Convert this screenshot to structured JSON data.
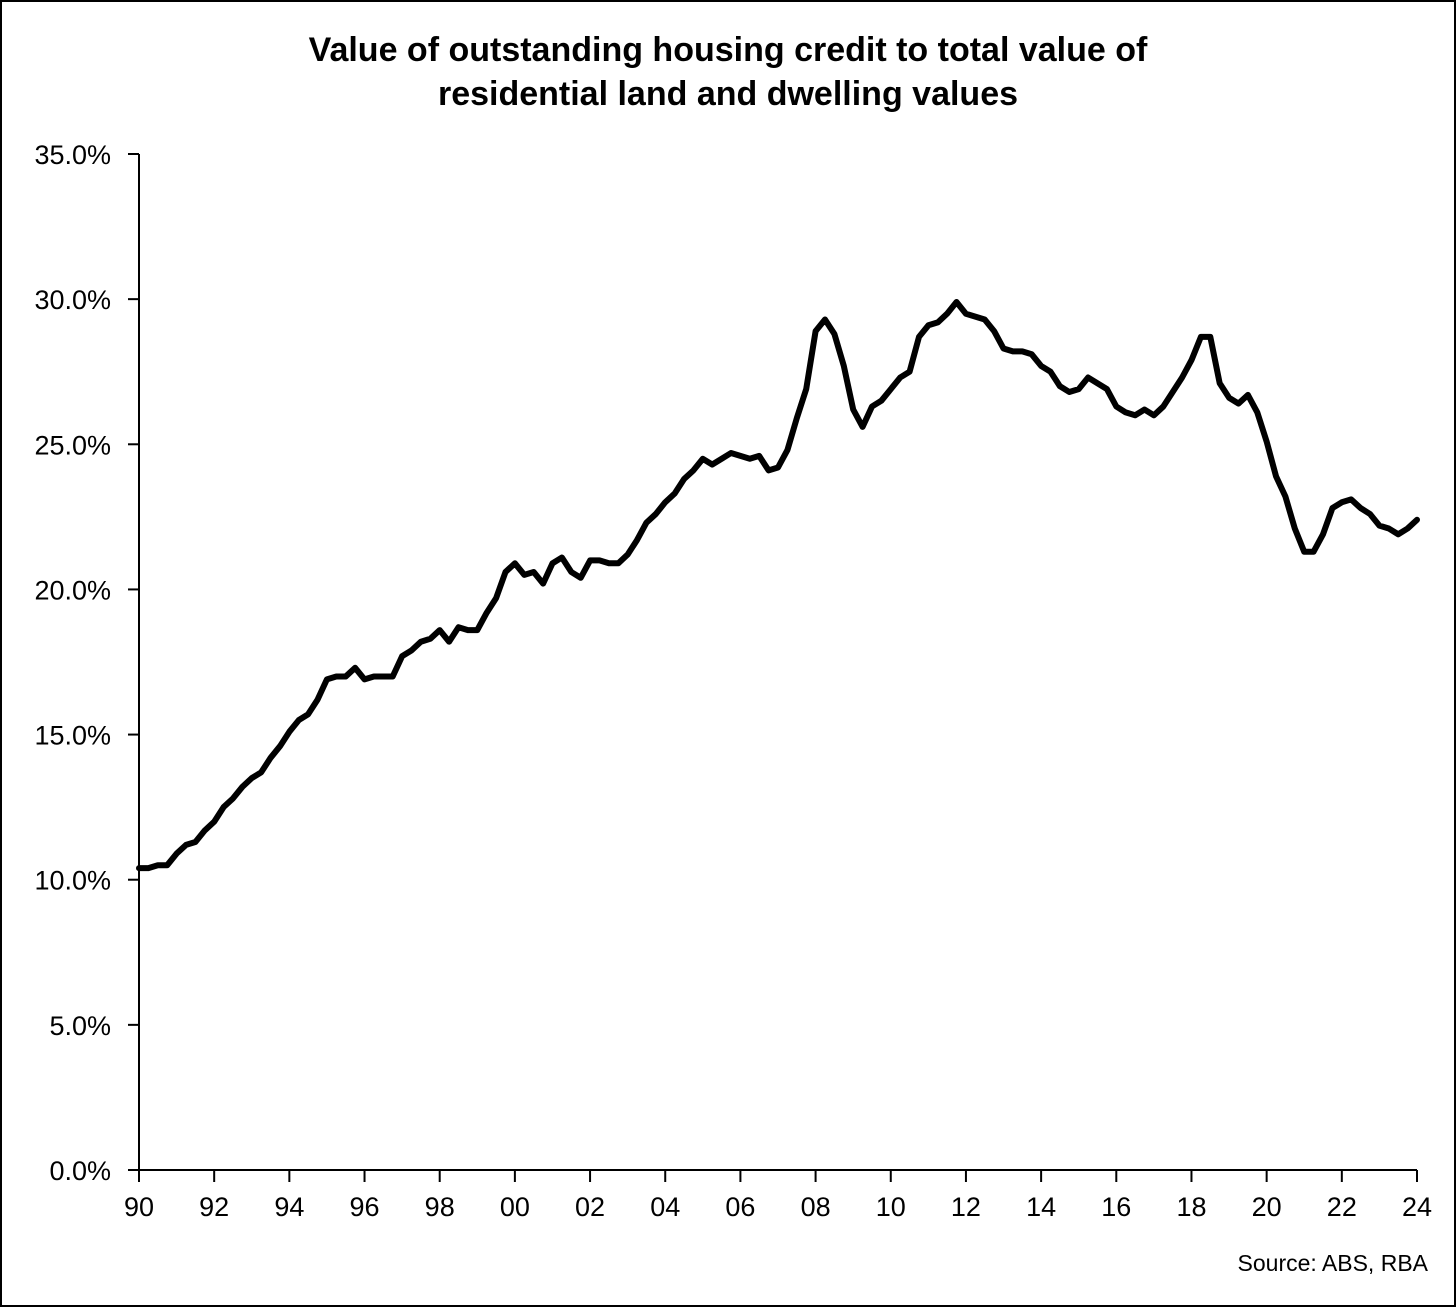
{
  "chart_data": {
    "type": "line",
    "title_line1": "Value of outstanding housing credit to total value of",
    "title_line2": "residential land and dwelling values",
    "xlabel": "",
    "ylabel": "",
    "source": "Source: ABS, RBA",
    "ylim": [
      0,
      35
    ],
    "xlim": [
      1990,
      2024
    ],
    "y_ticks": [
      0,
      5,
      10,
      15,
      20,
      25,
      30,
      35
    ],
    "y_tick_labels": [
      "0.0%",
      "5.0%",
      "10.0%",
      "15.0%",
      "20.0%",
      "25.0%",
      "30.0%",
      "35.0%"
    ],
    "x_ticks": [
      1990,
      1992,
      1994,
      1996,
      1998,
      2000,
      2002,
      2004,
      2006,
      2008,
      2010,
      2012,
      2014,
      2016,
      2018,
      2020,
      2022,
      2024
    ],
    "x_tick_labels": [
      "90",
      "92",
      "94",
      "96",
      "98",
      "00",
      "02",
      "04",
      "06",
      "08",
      "10",
      "12",
      "14",
      "16",
      "18",
      "20",
      "22",
      "24"
    ],
    "grid": false,
    "line_color": "#000000",
    "series": [
      {
        "points": [
          [
            1990.0,
            10.4
          ],
          [
            1990.25,
            10.4
          ],
          [
            1990.5,
            10.5
          ],
          [
            1990.75,
            10.5
          ],
          [
            1991.0,
            10.9
          ],
          [
            1991.25,
            11.2
          ],
          [
            1991.5,
            11.3
          ],
          [
            1991.75,
            11.7
          ],
          [
            1992.0,
            12.0
          ],
          [
            1992.25,
            12.5
          ],
          [
            1992.5,
            12.8
          ],
          [
            1992.75,
            13.2
          ],
          [
            1993.0,
            13.5
          ],
          [
            1993.25,
            13.7
          ],
          [
            1993.5,
            14.2
          ],
          [
            1993.75,
            14.6
          ],
          [
            1994.0,
            15.1
          ],
          [
            1994.25,
            15.5
          ],
          [
            1994.5,
            15.7
          ],
          [
            1994.75,
            16.2
          ],
          [
            1995.0,
            16.9
          ],
          [
            1995.25,
            17.0
          ],
          [
            1995.5,
            17.0
          ],
          [
            1995.75,
            17.3
          ],
          [
            1996.0,
            16.9
          ],
          [
            1996.25,
            17.0
          ],
          [
            1996.5,
            17.0
          ],
          [
            1996.75,
            17.0
          ],
          [
            1997.0,
            17.7
          ],
          [
            1997.25,
            17.9
          ],
          [
            1997.5,
            18.2
          ],
          [
            1997.75,
            18.3
          ],
          [
            1998.0,
            18.6
          ],
          [
            1998.25,
            18.2
          ],
          [
            1998.5,
            18.7
          ],
          [
            1998.75,
            18.6
          ],
          [
            1999.0,
            18.6
          ],
          [
            1999.25,
            19.2
          ],
          [
            1999.5,
            19.7
          ],
          [
            1999.75,
            20.6
          ],
          [
            2000.0,
            20.9
          ],
          [
            2000.25,
            20.5
          ],
          [
            2000.5,
            20.6
          ],
          [
            2000.75,
            20.2
          ],
          [
            2001.0,
            20.9
          ],
          [
            2001.25,
            21.1
          ],
          [
            2001.5,
            20.6
          ],
          [
            2001.75,
            20.4
          ],
          [
            2002.0,
            21.0
          ],
          [
            2002.25,
            21.0
          ],
          [
            2002.5,
            20.9
          ],
          [
            2002.75,
            20.9
          ],
          [
            2003.0,
            21.2
          ],
          [
            2003.25,
            21.7
          ],
          [
            2003.5,
            22.3
          ],
          [
            2003.75,
            22.6
          ],
          [
            2004.0,
            23.0
          ],
          [
            2004.25,
            23.3
          ],
          [
            2004.5,
            23.8
          ],
          [
            2004.75,
            24.1
          ],
          [
            2005.0,
            24.5
          ],
          [
            2005.25,
            24.3
          ],
          [
            2005.5,
            24.5
          ],
          [
            2005.75,
            24.7
          ],
          [
            2006.0,
            24.6
          ],
          [
            2006.25,
            24.5
          ],
          [
            2006.5,
            24.6
          ],
          [
            2006.75,
            24.1
          ],
          [
            2007.0,
            24.2
          ],
          [
            2007.25,
            24.8
          ],
          [
            2007.5,
            25.9
          ],
          [
            2007.75,
            26.9
          ],
          [
            2008.0,
            28.9
          ],
          [
            2008.25,
            29.3
          ],
          [
            2008.5,
            28.8
          ],
          [
            2008.75,
            27.7
          ],
          [
            2009.0,
            26.2
          ],
          [
            2009.25,
            25.6
          ],
          [
            2009.5,
            26.3
          ],
          [
            2009.75,
            26.5
          ],
          [
            2010.0,
            26.9
          ],
          [
            2010.25,
            27.3
          ],
          [
            2010.5,
            27.5
          ],
          [
            2010.75,
            28.7
          ],
          [
            2011.0,
            29.1
          ],
          [
            2011.25,
            29.2
          ],
          [
            2011.5,
            29.5
          ],
          [
            2011.75,
            29.9
          ],
          [
            2012.0,
            29.5
          ],
          [
            2012.25,
            29.4
          ],
          [
            2012.5,
            29.3
          ],
          [
            2012.75,
            28.9
          ],
          [
            2013.0,
            28.3
          ],
          [
            2013.25,
            28.2
          ],
          [
            2013.5,
            28.2
          ],
          [
            2013.75,
            28.1
          ],
          [
            2014.0,
            27.7
          ],
          [
            2014.25,
            27.5
          ],
          [
            2014.5,
            27.0
          ],
          [
            2014.75,
            26.8
          ],
          [
            2015.0,
            26.9
          ],
          [
            2015.25,
            27.3
          ],
          [
            2015.5,
            27.1
          ],
          [
            2015.75,
            26.9
          ],
          [
            2016.0,
            26.3
          ],
          [
            2016.25,
            26.1
          ],
          [
            2016.5,
            26.0
          ],
          [
            2016.75,
            26.2
          ],
          [
            2017.0,
            26.0
          ],
          [
            2017.25,
            26.3
          ],
          [
            2017.5,
            26.8
          ],
          [
            2017.75,
            27.3
          ],
          [
            2018.0,
            27.9
          ],
          [
            2018.25,
            28.7
          ],
          [
            2018.5,
            28.7
          ],
          [
            2018.75,
            27.1
          ],
          [
            2019.0,
            26.6
          ],
          [
            2019.25,
            26.4
          ],
          [
            2019.5,
            26.7
          ],
          [
            2019.75,
            26.1
          ],
          [
            2020.0,
            25.1
          ],
          [
            2020.25,
            23.9
          ],
          [
            2020.5,
            23.2
          ],
          [
            2020.75,
            22.1
          ],
          [
            2021.0,
            21.3
          ],
          [
            2021.25,
            21.3
          ],
          [
            2021.5,
            21.9
          ],
          [
            2021.75,
            22.8
          ],
          [
            2022.0,
            23.0
          ],
          [
            2022.25,
            23.1
          ],
          [
            2022.5,
            22.8
          ],
          [
            2022.75,
            22.6
          ],
          [
            2023.0,
            22.2
          ],
          [
            2023.25,
            22.1
          ],
          [
            2023.5,
            21.9
          ],
          [
            2023.75,
            22.1
          ],
          [
            2024.0,
            22.4
          ]
        ]
      }
    ]
  }
}
